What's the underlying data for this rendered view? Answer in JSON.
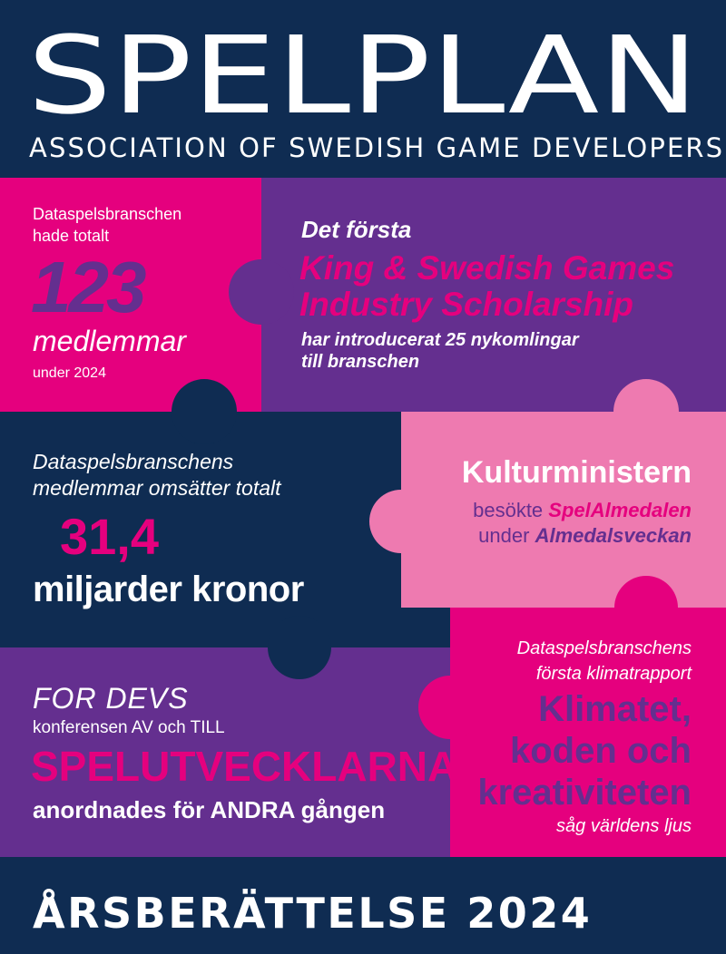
{
  "header": {
    "logo_text": "SPELPLAN",
    "subtitle": "ASSOCIATION OF SWEDISH GAME DEVELOPERS"
  },
  "members": {
    "line1": "Dataspelsbranschen",
    "line2": "hade totalt",
    "number": "123",
    "unit": "medlemmar",
    "year": "under 2024"
  },
  "scholarship": {
    "intro": "Det första",
    "name_line1": "King & Swedish Games",
    "name_line2": "Industry Scholarship",
    "desc_line1": "har introducerat 25 nykomlingar",
    "desc_line2": "till branschen"
  },
  "turnover": {
    "line1": "Dataspelsbranschens",
    "line2": "medlemmar omsätter totalt",
    "number": "31,4",
    "unit": "miljarder kronor"
  },
  "minister": {
    "title": "Kulturministern",
    "line1_prefix": "besökte ",
    "line1_highlight": "SpelAlmedalen",
    "line2_prefix": "under ",
    "line2_highlight": "Almedalsveckan"
  },
  "fordevs": {
    "title": "FOR DEVS",
    "line1": "konferensen AV och TILL",
    "highlight": "SPELUTVECKLARNA",
    "line2": "anordnades för ANDRA gången"
  },
  "climate": {
    "line1": "Dataspelsbranschens",
    "line2": "första klimatrapport",
    "title_line1": "Klimatet,",
    "title_line2": "koden och",
    "title_line3": "kreativiteten",
    "tagline": "såg världens ljus"
  },
  "footer": {
    "title": "ÅRSBERÄTTELSE 2024"
  },
  "colors": {
    "navy": "#0f2c52",
    "magenta": "#e5007e",
    "purple": "#642f8f",
    "pink": "#ee7ab0",
    "white": "#ffffff"
  }
}
